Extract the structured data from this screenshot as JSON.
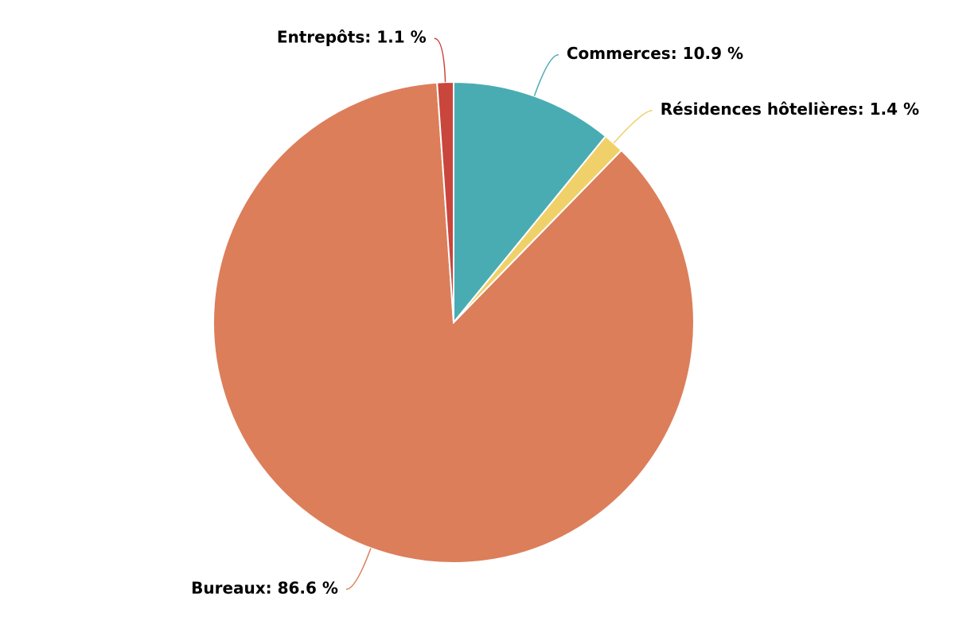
{
  "chart_data": {
    "type": "pie",
    "values": [
      10.9,
      1.4,
      86.6,
      1.1
    ],
    "value_labels": [
      "Commerces: 10.9 %",
      "Résidences hôtelières: 1.4 %",
      "Bureaux: 86.6 %",
      "Entrepôts: 1.1 %"
    ],
    "colors": [
      "#4aacb3",
      "#f0d068",
      "#dc7e5a",
      "#c9463d"
    ]
  }
}
